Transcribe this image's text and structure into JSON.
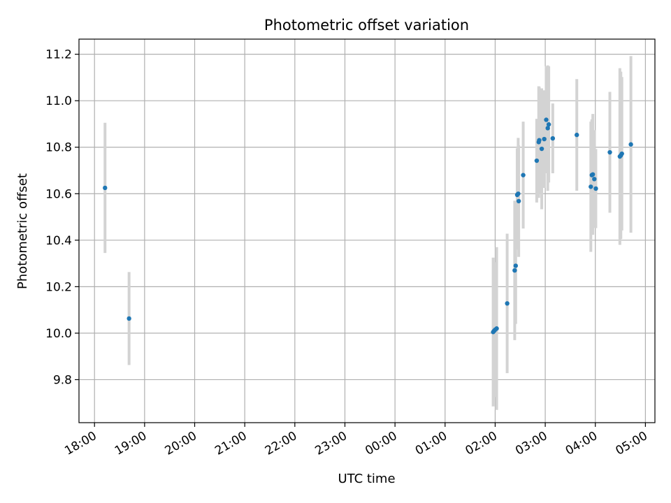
{
  "chart_data": {
    "type": "scatter",
    "title": "Photometric offset variation",
    "xlabel": "UTC time",
    "ylabel": "Photometric offset",
    "x_unit": "hours since 18:00 UTC",
    "xlim": [
      -0.31,
      11.19
    ],
    "ylim": [
      9.615,
      11.265
    ],
    "grid": true,
    "x_ticks": [
      {
        "value": 0,
        "label": "18:00"
      },
      {
        "value": 1,
        "label": "19:00"
      },
      {
        "value": 2,
        "label": "20:00"
      },
      {
        "value": 3,
        "label": "21:00"
      },
      {
        "value": 4,
        "label": "22:00"
      },
      {
        "value": 5,
        "label": "23:00"
      },
      {
        "value": 6,
        "label": "00:00"
      },
      {
        "value": 7,
        "label": "01:00"
      },
      {
        "value": 8,
        "label": "02:00"
      },
      {
        "value": 9,
        "label": "03:00"
      },
      {
        "value": 10,
        "label": "04:00"
      },
      {
        "value": 11,
        "label": "05:00"
      }
    ],
    "y_ticks": [
      {
        "value": 9.8,
        "label": "9.8"
      },
      {
        "value": 10.0,
        "label": "10.0"
      },
      {
        "value": 10.2,
        "label": "10.2"
      },
      {
        "value": 10.4,
        "label": "10.4"
      },
      {
        "value": 10.6,
        "label": "10.6"
      },
      {
        "value": 10.8,
        "label": "10.8"
      },
      {
        "value": 11.0,
        "label": "11.0"
      },
      {
        "value": 11.2,
        "label": "11.2"
      }
    ],
    "marker_color": "#1f77b4",
    "errorbar_color": "#d3d3d3",
    "points": [
      {
        "x": 0.21,
        "y": 10.625,
        "err": 0.28
      },
      {
        "x": 0.69,
        "y": 10.063,
        "err": 0.2
      },
      {
        "x": 7.96,
        "y": 10.005,
        "err": 0.32
      },
      {
        "x": 7.98,
        "y": 10.01,
        "err": 0.19
      },
      {
        "x": 8.0,
        "y": 10.015,
        "err": 0.29
      },
      {
        "x": 8.03,
        "y": 10.02,
        "err": 0.35
      },
      {
        "x": 8.24,
        "y": 10.128,
        "err": 0.3
      },
      {
        "x": 8.39,
        "y": 10.27,
        "err": 0.3
      },
      {
        "x": 8.41,
        "y": 10.29,
        "err": 0.25
      },
      {
        "x": 8.44,
        "y": 10.595,
        "err": 0.2
      },
      {
        "x": 8.46,
        "y": 10.6,
        "err": 0.24
      },
      {
        "x": 8.47,
        "y": 10.568,
        "err": 0.24
      },
      {
        "x": 8.56,
        "y": 10.68,
        "err": 0.23
      },
      {
        "x": 8.83,
        "y": 10.742,
        "err": 0.18
      },
      {
        "x": 8.87,
        "y": 10.822,
        "err": 0.24
      },
      {
        "x": 8.88,
        "y": 10.83,
        "err": 0.23
      },
      {
        "x": 8.93,
        "y": 10.793,
        "err": 0.26
      },
      {
        "x": 8.98,
        "y": 10.835,
        "err": 0.21
      },
      {
        "x": 9.02,
        "y": 10.918,
        "err": 0.23
      },
      {
        "x": 9.05,
        "y": 10.882,
        "err": 0.27
      },
      {
        "x": 9.07,
        "y": 10.898,
        "err": 0.25
      },
      {
        "x": 9.15,
        "y": 10.838,
        "err": 0.15
      },
      {
        "x": 9.63,
        "y": 10.853,
        "err": 0.24
      },
      {
        "x": 9.91,
        "y": 10.63,
        "err": 0.28
      },
      {
        "x": 9.93,
        "y": 10.68,
        "err": 0.24
      },
      {
        "x": 9.95,
        "y": 10.683,
        "err": 0.26
      },
      {
        "x": 9.98,
        "y": 10.663,
        "err": 0.21
      },
      {
        "x": 10.01,
        "y": 10.622,
        "err": 0.17
      },
      {
        "x": 10.29,
        "y": 10.778,
        "err": 0.26
      },
      {
        "x": 10.49,
        "y": 10.76,
        "err": 0.38
      },
      {
        "x": 10.51,
        "y": 10.765,
        "err": 0.36
      },
      {
        "x": 10.53,
        "y": 10.772,
        "err": 0.33
      },
      {
        "x": 10.71,
        "y": 10.812,
        "err": 0.38
      }
    ]
  }
}
